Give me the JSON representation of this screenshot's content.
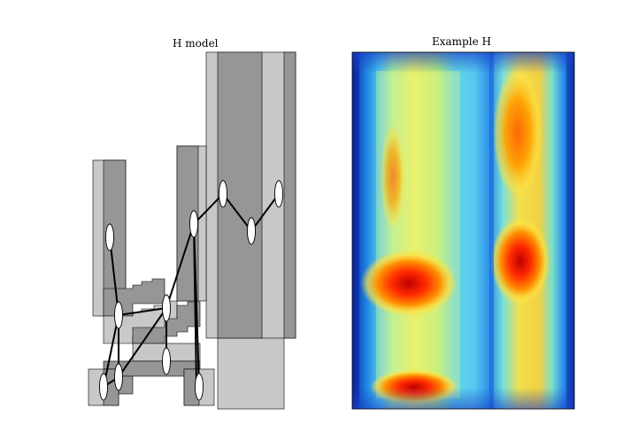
{
  "left_panel": {
    "title": "H model"
  },
  "right_panel": {
    "title": "Example H"
  },
  "colors": {
    "light_box": "#c8c8c8",
    "dark_box": "#969696",
    "edge": "#000000",
    "node_fill": "#ffffff"
  },
  "heatmap": {
    "colormap": "jet",
    "bands": [
      {
        "name": "band-1",
        "intensity": 0.55
      },
      {
        "name": "band-2",
        "intensity": 0.9
      },
      {
        "name": "band-3",
        "intensity": 0.92
      },
      {
        "name": "band-4",
        "intensity": 0.95
      }
    ]
  }
}
